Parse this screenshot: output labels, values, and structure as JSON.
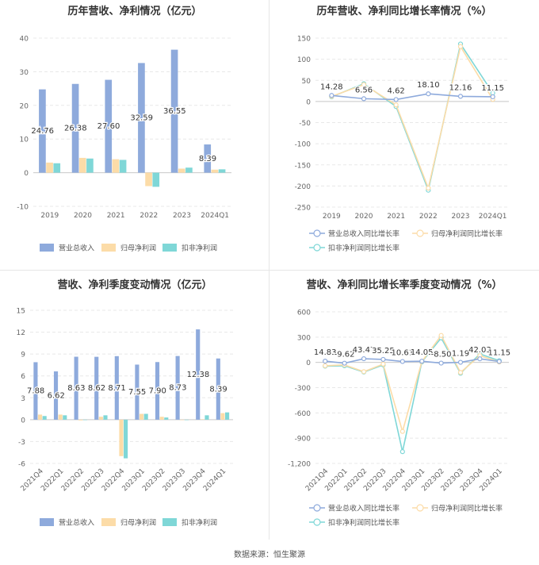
{
  "footer": {
    "source": "数据来源：恒生聚源"
  },
  "colors": {
    "revenue": "#8eaadc",
    "parent": "#fcdca8",
    "deduct": "#7fd7d7",
    "grid": "#e8e8e8",
    "axis": "#666666"
  },
  "chart_data": [
    {
      "type": "bar",
      "title": "历年营收、净利情况（亿元）",
      "categories": [
        "2019",
        "2020",
        "2021",
        "2022",
        "2023",
        "2024Q1"
      ],
      "ylim": [
        -10,
        40
      ],
      "yticks": [
        -10,
        0,
        10,
        20,
        30,
        40
      ],
      "grid": true,
      "legend": "bottom",
      "series": [
        {
          "name": "营业总收入",
          "values": [
            24.76,
            26.38,
            27.6,
            32.59,
            36.55,
            8.39
          ]
        },
        {
          "name": "归母净利润",
          "values": [
            3.0,
            4.4,
            4.0,
            -4.0,
            1.2,
            0.9
          ]
        },
        {
          "name": "扣非净利润",
          "values": [
            2.8,
            4.2,
            3.8,
            -4.2,
            1.5,
            1.0
          ]
        }
      ],
      "data_labels": [
        "24.76",
        "26.38",
        "27.60",
        "32.59",
        "36.55",
        "8.39"
      ]
    },
    {
      "type": "line",
      "title": "历年营收、净利同比增长率情况（%）",
      "categories": [
        "2019",
        "2020",
        "2021",
        "2022",
        "2023",
        "2024Q1"
      ],
      "ylim": [
        -250,
        150
      ],
      "yticks": [
        -250,
        -200,
        -150,
        -100,
        -50,
        0,
        50,
        100,
        150
      ],
      "grid": true,
      "legend": "bottom",
      "series": [
        {
          "name": "营业总收入同比增长率",
          "values": [
            14.28,
            6.56,
            4.62,
            18.1,
            12.16,
            11.15
          ]
        },
        {
          "name": "归母净利润同比增长率",
          "values": [
            12,
            40,
            -8,
            -205,
            130,
            5
          ]
        },
        {
          "name": "扣非净利润同比增长率",
          "values": [
            11,
            42,
            -12,
            -210,
            136,
            20
          ]
        }
      ],
      "data_labels": [
        "14.28",
        "6.56",
        "4.62",
        "18.10",
        "12.16",
        "11.15"
      ]
    },
    {
      "type": "bar",
      "title": "营收、净利季度变动情况（亿元）",
      "categories": [
        "2021Q4",
        "2022Q1",
        "2022Q2",
        "2022Q3",
        "2022Q4",
        "2023Q1",
        "2023Q2",
        "2023Q3",
        "2023Q4",
        "2024Q1"
      ],
      "ylim": [
        -6,
        15
      ],
      "yticks": [
        -6,
        -3,
        0,
        3,
        6,
        9,
        12,
        15
      ],
      "grid": true,
      "legend": "bottom",
      "series": [
        {
          "name": "营业总收入",
          "values": [
            7.88,
            6.62,
            8.63,
            8.62,
            8.71,
            7.55,
            7.9,
            8.73,
            12.38,
            8.39
          ]
        },
        {
          "name": "归母净利润",
          "values": [
            0.7,
            0.7,
            -0.1,
            0.4,
            -5.0,
            0.8,
            0.4,
            -0.05,
            0.05,
            0.9
          ]
        },
        {
          "name": "扣非净利润",
          "values": [
            0.5,
            0.6,
            -0.05,
            0.6,
            -5.3,
            0.8,
            0.3,
            -0.05,
            0.6,
            1.0
          ]
        }
      ],
      "data_labels": [
        "7.88",
        "6.62",
        "8.63",
        "8.62",
        "8.71",
        "7.55",
        "7.90",
        "8.73",
        "12.38",
        "8.39"
      ]
    },
    {
      "type": "line",
      "title": "营收、净利同比增长率季度变动情况（%）",
      "categories": [
        "2021Q4",
        "2022Q1",
        "2022Q2",
        "2022Q3",
        "2022Q4",
        "2023Q1",
        "2023Q2",
        "2023Q3",
        "2023Q4",
        "2024Q1"
      ],
      "ylim": [
        -1200,
        600
      ],
      "yticks": [
        -1200,
        -900,
        -600,
        -300,
        0,
        300,
        600
      ],
      "ytick_labels": [
        "-1,200",
        "-900",
        "-600",
        "-300",
        "0",
        "300",
        "600"
      ],
      "grid": true,
      "legend": "bottom",
      "series": [
        {
          "name": "营业总收入同比增长率",
          "values": [
            14.83,
            -9.62,
            43.47,
            35.25,
            10.61,
            14.05,
            -8.5,
            1.19,
            42.03,
            11.15
          ]
        },
        {
          "name": "归母净利润同比增长率",
          "values": [
            -40,
            -30,
            -110,
            -20,
            -820,
            10,
            320,
            -120,
            80,
            5
          ]
        },
        {
          "name": "扣非净利润同比增长率",
          "values": [
            -45,
            -40,
            -115,
            -30,
            -1060,
            5,
            290,
            -130,
            100,
            20
          ]
        }
      ],
      "data_labels": [
        "14.83",
        "-9.62",
        "43.47",
        "35.25",
        "10.61",
        "14.05",
        "-8.50",
        "1.19",
        "42.03",
        "11.15"
      ]
    }
  ]
}
